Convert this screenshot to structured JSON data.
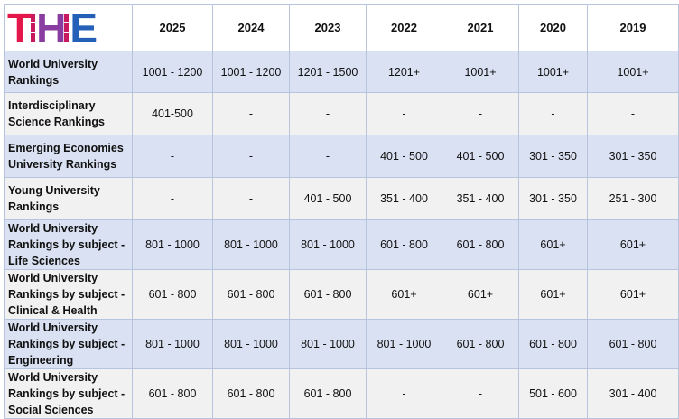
{
  "logo": {
    "text": "THE",
    "t": "T",
    "h": "H",
    "e": "E",
    "colors": {
      "t": "#e3174a",
      "h": "#8a3da0",
      "e": "#2460b8"
    }
  },
  "years": [
    "2025",
    "2024",
    "2023",
    "2022",
    "2021",
    "2020",
    "2019"
  ],
  "rows": [
    {
      "label": "World University Rankings",
      "values": [
        "1001 - 1200",
        "1001 - 1200",
        "1201 - 1500",
        "1201+",
        "1001+",
        "1001+",
        "1001+"
      ]
    },
    {
      "label": "Interdisciplinary Science Rankings",
      "values": [
        "401-500",
        "-",
        "-",
        "-",
        "-",
        "-",
        "-"
      ]
    },
    {
      "label": "Emerging Economies University Rankings",
      "values": [
        "-",
        "-",
        "-",
        "401 - 500",
        "401 - 500",
        "301 - 350",
        "301 - 350"
      ]
    },
    {
      "label": "Young University Rankings",
      "values": [
        "-",
        "-",
        "401 - 500",
        "351 - 400",
        "351 - 400",
        "301 - 350",
        "251 - 300"
      ]
    },
    {
      "label": "World University Rankings by subject - Life Sciences",
      "values": [
        "801 - 1000",
        "801 - 1000",
        "801 - 1000",
        "601 - 800",
        "601 - 800",
        "601+",
        "601+"
      ]
    },
    {
      "label": "World University Rankings by subject - Clinical & Health",
      "values": [
        "601 - 800",
        "601 - 800",
        "601 - 800",
        "601+",
        "601+",
        "601+",
        "601+"
      ]
    },
    {
      "label": "World University Rankings by subject - Engineering",
      "values": [
        "801 - 1000",
        "801 - 1000",
        "801 - 1000",
        "801 - 1000",
        "601 - 800",
        "601 - 800",
        "601 - 800"
      ]
    },
    {
      "label": "World University Rankings by subject - Social Sciences",
      "values": [
        "601 - 800",
        "601 - 800",
        "601 - 800",
        "-",
        "-",
        "501 - 600",
        "301 - 400"
      ]
    }
  ]
}
